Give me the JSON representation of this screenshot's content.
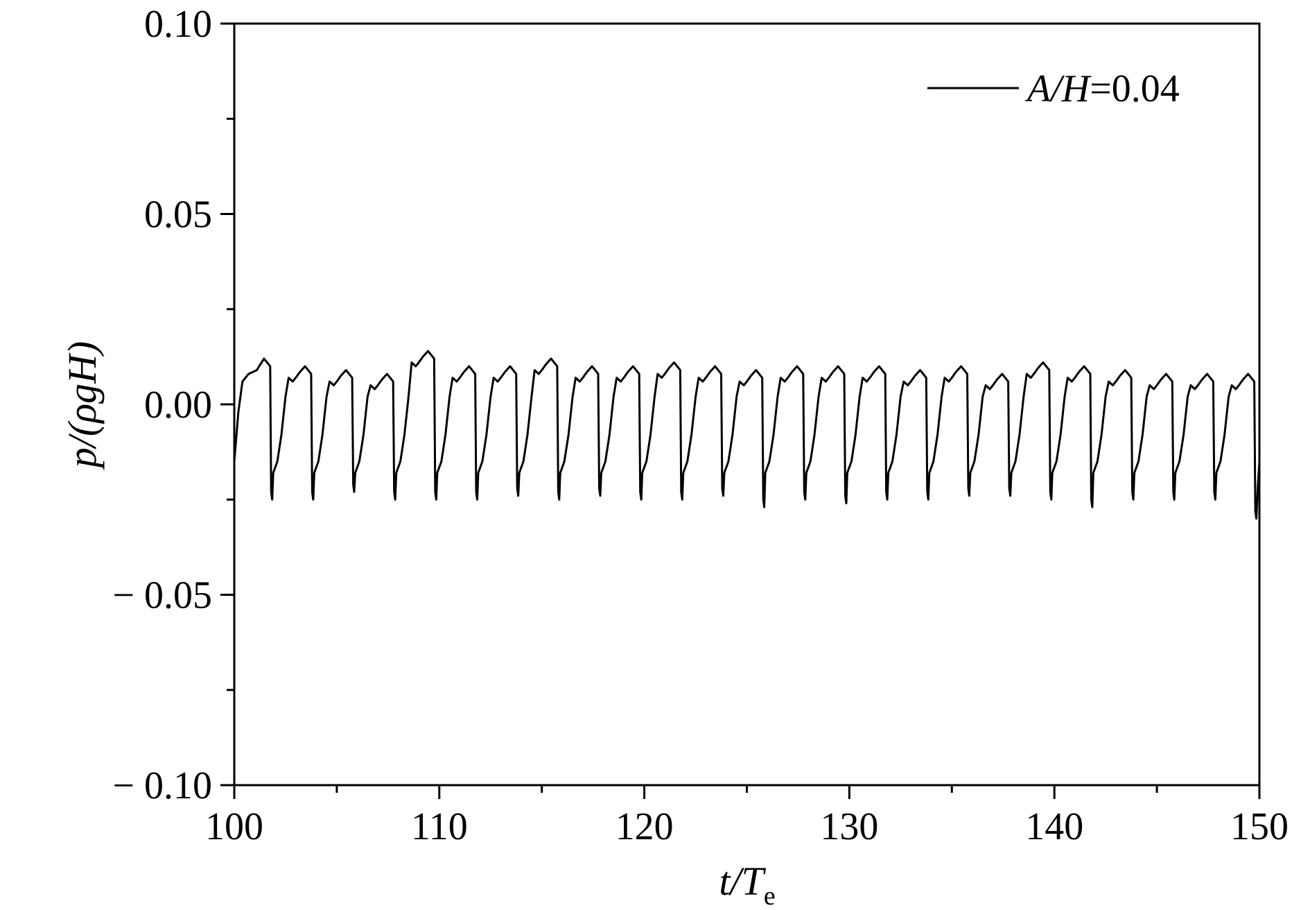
{
  "chart_data": {
    "type": "line",
    "title": "",
    "xlabel": {
      "main": "t/T",
      "sub": "e"
    },
    "ylabel": "p/(ρgH)",
    "xlim": [
      100,
      150
    ],
    "ylim": [
      -0.1,
      0.1
    ],
    "x_ticks": [
      100,
      110,
      120,
      130,
      140,
      150
    ],
    "x_tick_labels": [
      "100",
      "110",
      "120",
      "130",
      "140",
      "150"
    ],
    "x_minor_ticks": [
      105,
      115,
      125,
      135,
      145
    ],
    "y_ticks": [
      -0.1,
      -0.05,
      0,
      0.05,
      0.1
    ],
    "y_tick_labels": [
      "− 0.10",
      "− 0.05",
      "0.00",
      "0.05",
      "0.10"
    ],
    "y_minor_ticks": [
      -0.075,
      -0.025,
      0.025,
      0.075
    ],
    "grid": false,
    "legend_position": "top-right",
    "series": [
      {
        "name": "A/H=0.04",
        "color": "#000000",
        "period": 2.0,
        "trough_times": [
          101.8,
          103.8,
          105.8,
          107.8,
          109.8,
          111.8,
          113.8,
          115.8,
          117.8,
          119.8,
          121.8,
          123.8,
          125.8,
          127.8,
          129.8,
          131.8,
          133.8,
          135.8,
          137.8,
          139.8,
          141.8,
          143.8,
          145.8,
          147.8,
          149.8
        ],
        "peak_values": [
          0.012,
          0.01,
          0.009,
          0.008,
          0.014,
          0.01,
          0.01,
          0.012,
          0.01,
          0.01,
          0.011,
          0.01,
          0.009,
          0.01,
          0.01,
          0.01,
          0.009,
          0.01,
          0.008,
          0.011,
          0.01,
          0.009,
          0.008,
          0.008,
          0.008
        ],
        "trough_values": [
          -0.025,
          -0.025,
          -0.023,
          -0.025,
          -0.025,
          -0.025,
          -0.024,
          -0.025,
          -0.024,
          -0.025,
          -0.025,
          -0.024,
          -0.027,
          -0.025,
          -0.026,
          -0.025,
          -0.025,
          -0.024,
          -0.024,
          -0.025,
          -0.027,
          -0.025,
          -0.025,
          -0.025,
          -0.03
        ]
      }
    ]
  }
}
